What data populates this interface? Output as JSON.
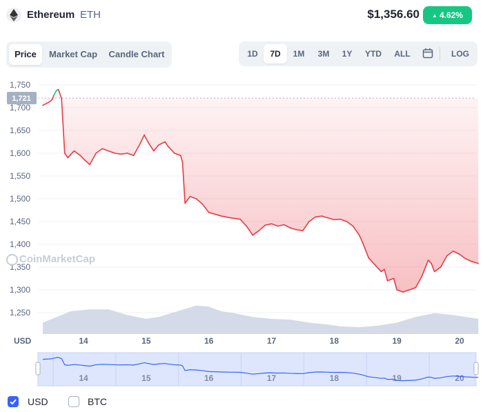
{
  "coin": {
    "name": "Ethereum",
    "symbol": "ETH",
    "price": "$1,356.60",
    "change": "4.62%",
    "change_color": "#16c784"
  },
  "tabs": [
    {
      "label": "Price",
      "active": true
    },
    {
      "label": "Market Cap",
      "active": false
    },
    {
      "label": "Candle Chart",
      "active": false
    }
  ],
  "ranges": [
    {
      "label": "1D",
      "active": false
    },
    {
      "label": "7D",
      "active": true
    },
    {
      "label": "1M",
      "active": false
    },
    {
      "label": "3M",
      "active": false
    },
    {
      "label": "1Y",
      "active": false
    },
    {
      "label": "YTD",
      "active": false
    },
    {
      "label": "ALL",
      "active": false
    },
    {
      "label": "calendar-icon",
      "icon": true
    },
    {
      "label": "LOG",
      "active": false
    }
  ],
  "watermark": "CoinMarketCap",
  "legend": [
    {
      "label": "USD",
      "checked": true
    },
    {
      "label": "BTC",
      "checked": false
    }
  ],
  "chart_data": {
    "type": "line",
    "ylabel": "USD",
    "ylim": [
      1200,
      1750
    ],
    "yticks": [
      1750,
      1700,
      1650,
      1600,
      1550,
      1500,
      1450,
      1400,
      1350,
      1300,
      1250
    ],
    "ytick_labels": [
      "1,750",
      "1,700",
      "1,650",
      "1,600",
      "1,550",
      "1,500",
      "1,450",
      "1,400",
      "1,350",
      "1,300",
      "1,250"
    ],
    "x_ticks": [
      14,
      15,
      16,
      17,
      18,
      19,
      20
    ],
    "x_tick_labels": [
      "14",
      "15",
      "16",
      "17",
      "18",
      "19",
      "20"
    ],
    "xlim": [
      13.35,
      20.3
    ],
    "open_price_marker": {
      "value": 1721,
      "label": "1,721"
    },
    "colors": {
      "up": "#16c784",
      "down": "#ea3943",
      "volume": "#cfd6e4",
      "navigator": "#3861fb"
    },
    "series": [
      {
        "values_x": [
          13.35,
          13.45,
          13.5,
          13.53,
          13.57,
          13.6,
          13.65,
          13.7,
          13.75,
          13.85,
          13.95,
          14.02,
          14.1,
          14.2,
          14.3,
          14.4,
          14.5,
          14.6,
          14.7,
          14.8,
          14.9,
          14.97,
          15.0,
          15.05,
          15.12,
          15.2,
          15.3,
          15.35,
          15.45,
          15.55,
          15.58,
          15.62,
          15.7,
          15.8,
          15.9,
          16.0,
          16.2,
          16.35,
          16.5,
          16.6,
          16.7,
          16.8,
          16.9,
          17.0,
          17.1,
          17.2,
          17.3,
          17.4,
          17.5,
          17.6,
          17.7,
          17.8,
          17.9,
          18.0,
          18.1,
          18.2,
          18.3,
          18.4,
          18.45,
          18.55,
          18.65,
          18.75,
          18.8,
          18.85,
          18.95,
          19.0,
          19.1,
          19.2,
          19.3,
          19.4,
          19.5,
          19.55,
          19.6,
          19.7,
          19.8,
          19.9,
          20.0,
          20.1,
          20.2,
          20.3
        ],
        "values_y": [
          1705,
          1712,
          1718,
          1728,
          1738,
          1740,
          1720,
          1600,
          1590,
          1605,
          1595,
          1585,
          1575,
          1600,
          1610,
          1605,
          1600,
          1598,
          1600,
          1595,
          1620,
          1640,
          1632,
          1620,
          1605,
          1618,
          1625,
          1615,
          1600,
          1595,
          1580,
          1490,
          1505,
          1500,
          1488,
          1470,
          1462,
          1458,
          1455,
          1440,
          1420,
          1430,
          1442,
          1445,
          1440,
          1443,
          1436,
          1432,
          1430,
          1450,
          1460,
          1462,
          1458,
          1454,
          1455,
          1450,
          1440,
          1420,
          1405,
          1370,
          1355,
          1340,
          1345,
          1320,
          1325,
          1300,
          1295,
          1300,
          1305,
          1330,
          1365,
          1358,
          1340,
          1350,
          1375,
          1385,
          1378,
          1368,
          1362,
          1358
        ]
      }
    ],
    "volume": {
      "values_x": [
        13.35,
        13.5,
        13.8,
        14.1,
        14.4,
        14.7,
        15.0,
        15.2,
        15.4,
        15.6,
        15.8,
        16.0,
        16.2,
        16.4,
        16.7,
        17.0,
        17.3,
        17.6,
        17.9,
        18.1,
        18.4,
        18.7,
        19.0,
        19.3,
        19.6,
        19.9,
        20.3
      ],
      "values_y": [
        0.3,
        0.4,
        0.6,
        0.65,
        0.65,
        0.5,
        0.4,
        0.45,
        0.55,
        0.65,
        0.75,
        0.72,
        0.6,
        0.55,
        0.45,
        0.4,
        0.38,
        0.3,
        0.25,
        0.2,
        0.18,
        0.22,
        0.3,
        0.45,
        0.55,
        0.5,
        0.4
      ]
    }
  }
}
